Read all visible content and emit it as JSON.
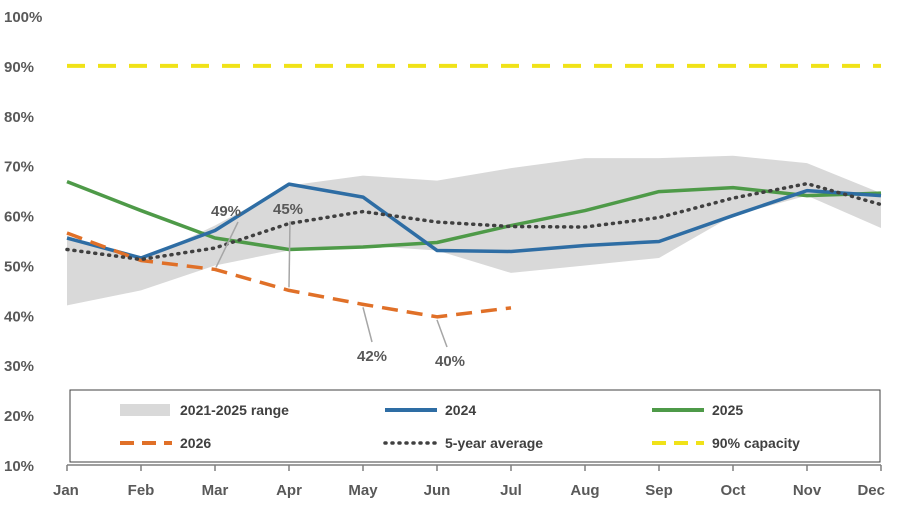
{
  "chart_data": {
    "type": "line",
    "title": "",
    "xlabel": "",
    "ylabel": "",
    "categories": [
      "Jan",
      "Feb",
      "Mar",
      "Apr",
      "May",
      "Jun",
      "Jul",
      "Aug",
      "Sep",
      "Oct",
      "Nov",
      "Dec"
    ],
    "ylim": [
      10,
      100
    ],
    "yticks": [
      10,
      20,
      30,
      40,
      50,
      60,
      70,
      80,
      90,
      100
    ],
    "ytick_labels": [
      "10%",
      "20%",
      "30%",
      "40%",
      "50%",
      "60%",
      "70%",
      "80%",
      "90%",
      "100%"
    ],
    "range": {
      "name": "2021-2025 range",
      "color": "#d9d9d9",
      "low": [
        42,
        45,
        50,
        53,
        54,
        53,
        48.5,
        50,
        51.5,
        60,
        64,
        57.5
      ],
      "high": [
        56,
        51,
        58,
        66,
        68,
        67,
        69.5,
        71.5,
        71.5,
        72,
        70.5,
        64.5
      ]
    },
    "series": [
      {
        "name": "2024",
        "color": "#2e6da4",
        "style": "solid",
        "values": [
          55.5,
          51.5,
          57,
          66.3,
          63.7,
          53,
          52.8,
          54,
          54.8,
          60,
          65,
          64
        ]
      },
      {
        "name": "2025",
        "color": "#4e9a48",
        "style": "solid",
        "values": [
          66.8,
          61,
          55.5,
          53.2,
          53.7,
          54.6,
          58,
          61,
          64.8,
          65.6,
          64,
          64.5
        ]
      },
      {
        "name": "2026",
        "color": "#e07028",
        "style": "dashed",
        "values": [
          56.5,
          51,
          49.2,
          45,
          42.2,
          39.7,
          41.5,
          null,
          null,
          null,
          null,
          null
        ]
      },
      {
        "name": "5-year average",
        "color": "#404040",
        "style": "dotted",
        "values": [
          53.2,
          51.2,
          53.5,
          58.4,
          60.8,
          58.7,
          57.8,
          57.7,
          59.6,
          63.5,
          66.4,
          62.2
        ]
      },
      {
        "name": "90% capacity",
        "color": "#f0e218",
        "style": "dashed",
        "values": [
          90,
          90,
          90,
          90,
          90,
          90,
          90,
          90,
          90,
          90,
          90,
          90
        ]
      }
    ],
    "annotations": [
      {
        "label": "49%",
        "month_index": 2,
        "value": 49.2
      },
      {
        "label": "45%",
        "month_index": 3,
        "value": 45
      },
      {
        "label": "42%",
        "month_index": 4,
        "value": 42.2
      },
      {
        "label": "40%",
        "month_index": 5,
        "value": 39.7
      }
    ],
    "legend_position": "bottom-inside"
  }
}
